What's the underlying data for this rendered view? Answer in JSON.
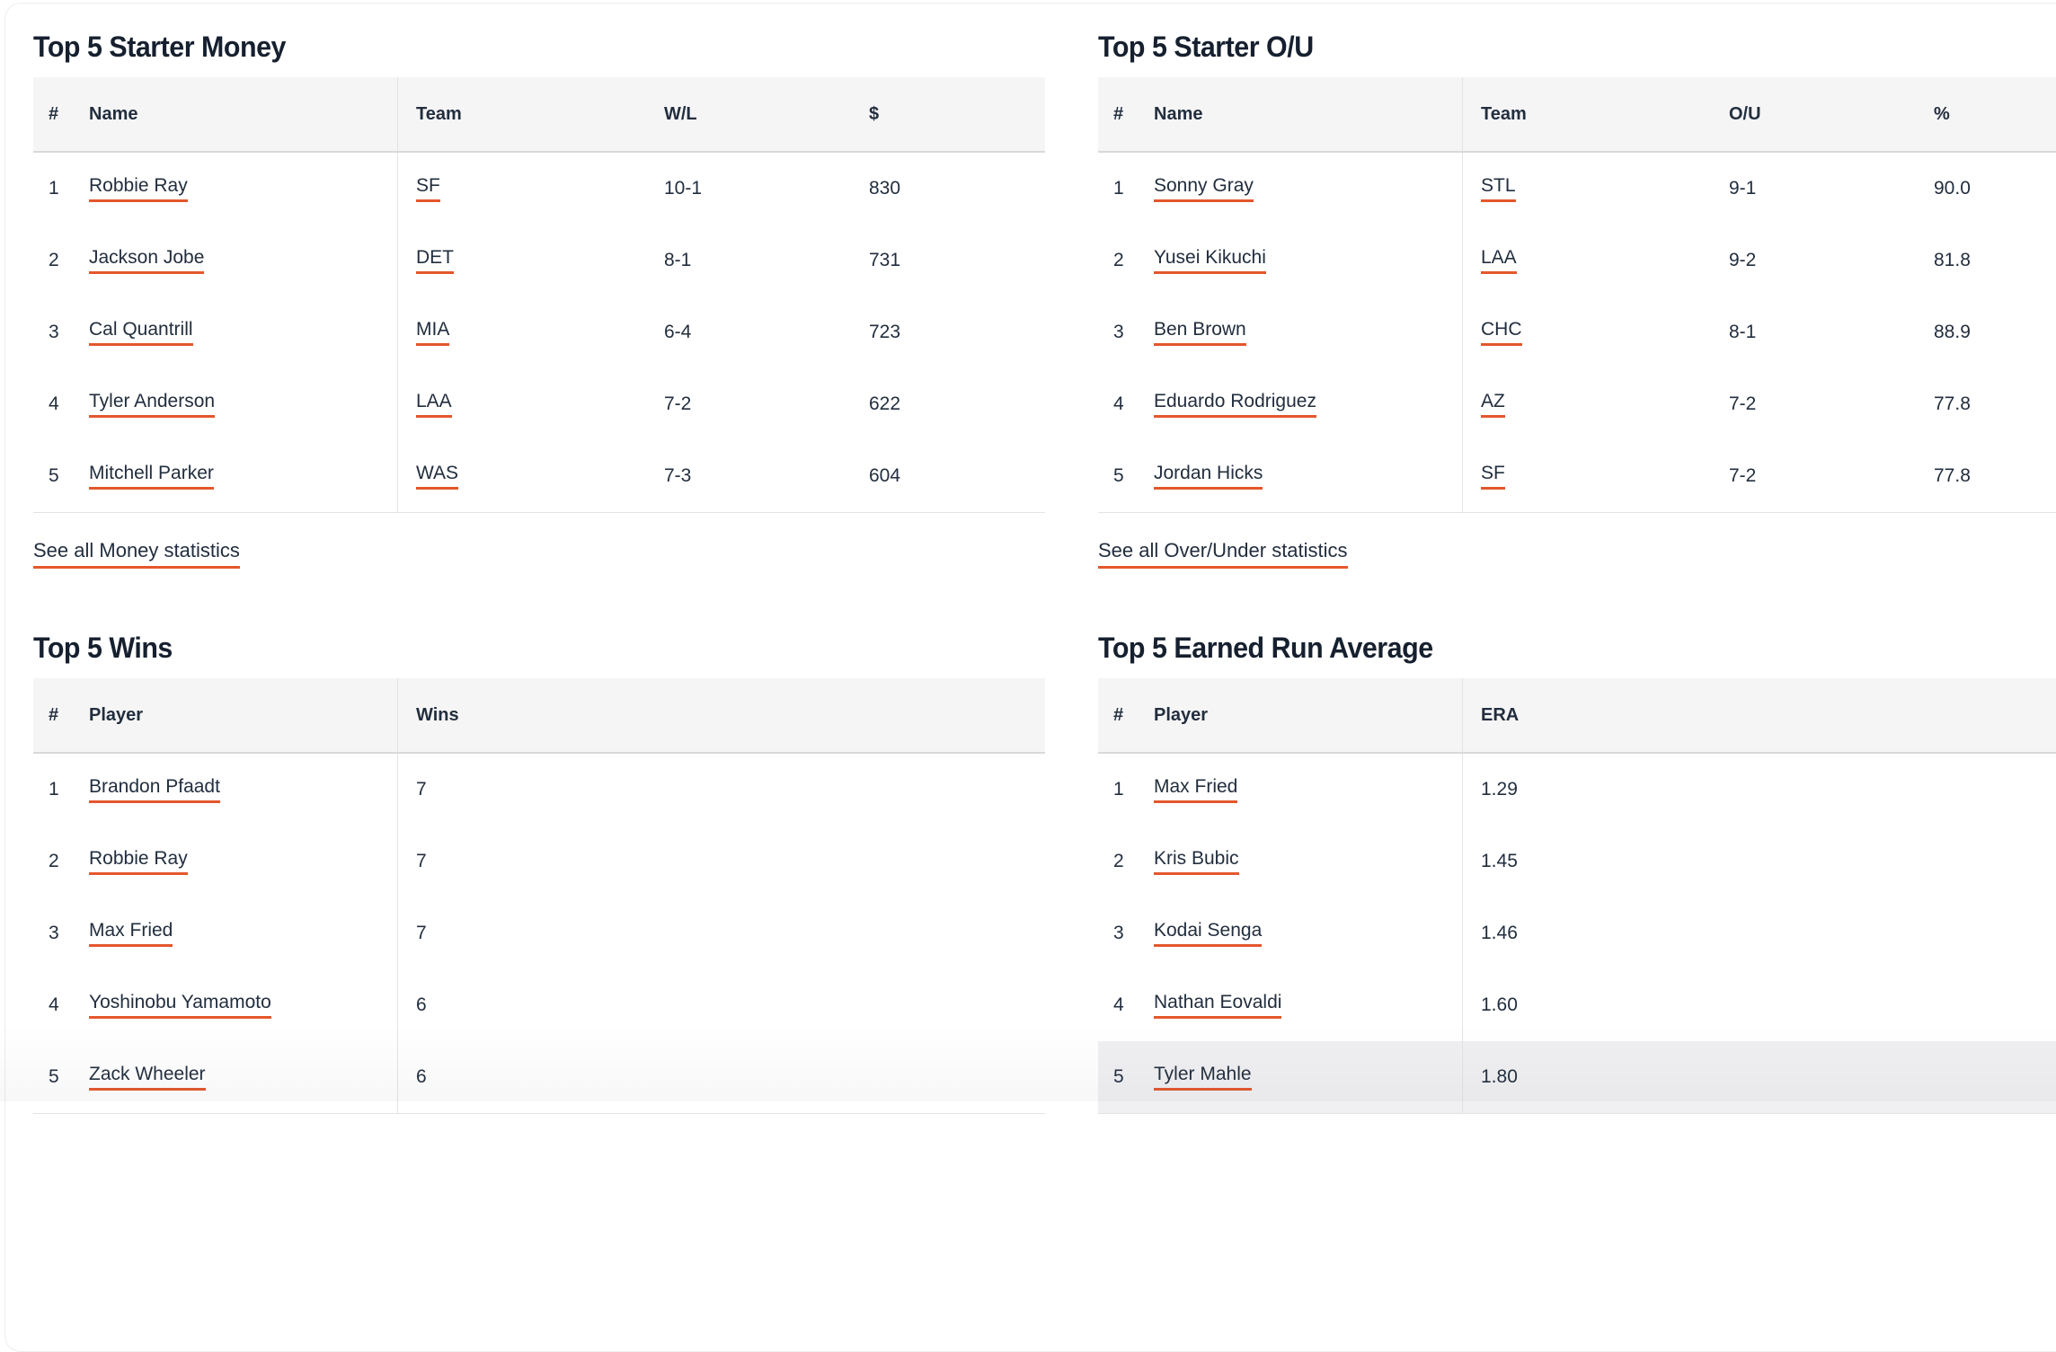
{
  "theme": {
    "accent": "#e4572c",
    "text": "#222e3e",
    "title": "#16202f",
    "header_bg": "#f5f5f6",
    "header_border": "#d9d9dc",
    "border": "#e3e3e6",
    "highlight": "#f0f0f2",
    "card_border": "#ededf0"
  },
  "sections": [
    {
      "title": "Top 5 Starter Money",
      "columns": [
        "#",
        "Name",
        "Team",
        "W/L",
        "$"
      ],
      "rows": [
        {
          "rank": "1",
          "name": "Robbie Ray",
          "team": "SF",
          "record": "10-1",
          "value": "830"
        },
        {
          "rank": "2",
          "name": "Jackson Jobe",
          "team": "DET",
          "record": "8-1",
          "value": "731"
        },
        {
          "rank": "3",
          "name": "Cal Quantrill",
          "team": "MIA",
          "record": "6-4",
          "value": "723"
        },
        {
          "rank": "4",
          "name": "Tyler Anderson",
          "team": "LAA",
          "record": "7-2",
          "value": "622"
        },
        {
          "rank": "5",
          "name": "Mitchell Parker",
          "team": "WAS",
          "record": "7-3",
          "value": "604"
        }
      ],
      "see_all": "See all Money statistics"
    },
    {
      "title": "Top 5 Starter O/U",
      "columns": [
        "#",
        "Name",
        "Team",
        "O/U",
        "%"
      ],
      "rows": [
        {
          "rank": "1",
          "name": "Sonny Gray",
          "team": "STL",
          "record": "9-1",
          "value": "90.0"
        },
        {
          "rank": "2",
          "name": "Yusei Kikuchi",
          "team": "LAA",
          "record": "9-2",
          "value": "81.8"
        },
        {
          "rank": "3",
          "name": "Ben Brown",
          "team": "CHC",
          "record": "8-1",
          "value": "88.9"
        },
        {
          "rank": "4",
          "name": "Eduardo Rodriguez",
          "team": "AZ",
          "record": "7-2",
          "value": "77.8"
        },
        {
          "rank": "5",
          "name": "Jordan Hicks",
          "team": "SF",
          "record": "7-2",
          "value": "77.8"
        }
      ],
      "see_all": "See all Over/Under statistics"
    },
    {
      "title": "Top 5 Wins",
      "columns": [
        "#",
        "Player",
        "Wins"
      ],
      "rows": [
        {
          "rank": "1",
          "name": "Brandon Pfaadt",
          "value": "7"
        },
        {
          "rank": "2",
          "name": "Robbie Ray",
          "value": "7"
        },
        {
          "rank": "3",
          "name": "Max Fried",
          "value": "7"
        },
        {
          "rank": "4",
          "name": "Yoshinobu Yamamoto",
          "value": "6"
        },
        {
          "rank": "5",
          "name": "Zack Wheeler",
          "value": "6"
        }
      ]
    },
    {
      "title": "Top 5 Earned Run Average",
      "columns": [
        "#",
        "Player",
        "ERA"
      ],
      "rows": [
        {
          "rank": "1",
          "name": "Max Fried",
          "value": "1.29"
        },
        {
          "rank": "2",
          "name": "Kris Bubic",
          "value": "1.45"
        },
        {
          "rank": "3",
          "name": "Kodai Senga",
          "value": "1.46"
        },
        {
          "rank": "4",
          "name": "Nathan Eovaldi",
          "value": "1.60"
        },
        {
          "rank": "5",
          "name": "Tyler Mahle",
          "value": "1.80"
        }
      ]
    }
  ]
}
